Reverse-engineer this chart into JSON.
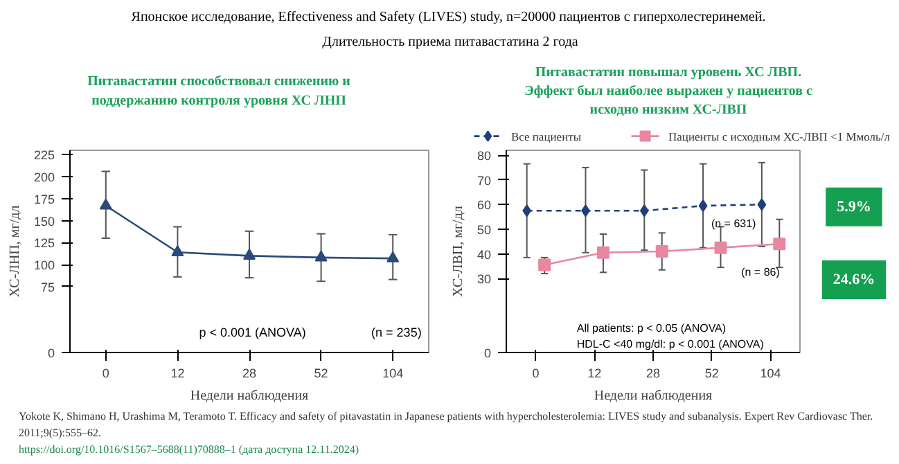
{
  "chart_data": [
    {
      "type": "other",
      "title": "Японское исследование, Effectiveness and Safety (LIVES) study,  n=20000 пациентов с гиперхолестеринемей.",
      "subtitle": "Длительность приема питавастатина 2 года",
      "annotations": [
        "Yokote K, Shimano H, Urashima M, Teramoto T. Efficacy and safety of pitavastatin in Japanese patients with hypercholesterolemia: LIVES study and subanalysis. Expert Rev Cardiovasc Ther.",
        "2011;9(5):555–62.",
        "https://doi.org/10.1016/S1567–5688(11)70888–1 (дата доступа 12.11.2024)"
      ]
    },
    {
      "type": "line",
      "title": "Питавастатин способствовал снижению и\nподдержанию контроля уровня ХС ЛНП",
      "xlabel": "Недели наблюдения",
      "ylabel": "ХС-ЛНП, мг/дл",
      "categories": [
        "0",
        "12",
        "28",
        "52",
        "104"
      ],
      "series": [
        {
          "color": "#2a4a7a",
          "values": [
            167,
            114,
            110,
            108,
            107
          ],
          "errors": [
            [
              130,
              206
            ],
            [
              86,
              143
            ],
            [
              85,
              138
            ],
            [
              81,
              135
            ],
            [
              83,
              134
            ]
          ],
          "marker": "triangle",
          "line_style": "solid"
        }
      ],
      "ylim": [
        0,
        230
      ],
      "yticks": [
        0,
        75,
        100,
        125,
        150,
        175,
        200,
        225
      ],
      "grid": false,
      "legend": false,
      "annotations": [
        "p < 0.001 (ANOVA)",
        "(n = 235)"
      ]
    },
    {
      "type": "line",
      "title": "Питавастатин повышал уровень ХС ЛВП.\nЭффект был наиболее выражен у пациентов с\nисходно низким ХС-ЛВП",
      "xlabel": "Недели наблюдения",
      "ylabel": "ХС-ЛВП, мг/дл",
      "categories": [
        "0",
        "12",
        "28",
        "52",
        "104"
      ],
      "series": [
        {
          "name": "Все пациенты",
          "color": "#1f3f7a",
          "values": [
            57.5,
            57.5,
            57.5,
            59.5,
            60
          ],
          "errors": [
            [
              38.5,
              76.5
            ],
            [
              40.5,
              75
            ],
            [
              41.5,
              74
            ],
            [
              42.5,
              76.5
            ],
            [
              43,
              77
            ]
          ],
          "marker": "diamond",
          "line_style": "dashed"
        },
        {
          "name": "Пациенты с исходным ХС-ЛВП <1 Ммоль/л",
          "color": "#e8879f",
          "values": [
            35.5,
            40.5,
            41,
            42.5,
            44
          ],
          "errors": [
            [
              32,
              38.5
            ],
            [
              32.5,
              48
            ],
            [
              33.5,
              48.5
            ],
            [
              34.5,
              51
            ],
            [
              34.5,
              54
            ]
          ],
          "marker": "square",
          "line_style": "solid"
        }
      ],
      "ylim": [
        0,
        82
      ],
      "yticks": [
        0,
        30,
        40,
        50,
        60,
        70,
        80
      ],
      "grid": false,
      "legend": "top",
      "annotations": [
        "(n = 631)",
        "(n = 86)",
        "All patients: p < 0.05 (ANOVA)",
        "HDL-C <40 mg/dl: p < 0.001 (ANOVA)",
        "5.9%",
        "24.6%"
      ]
    }
  ]
}
